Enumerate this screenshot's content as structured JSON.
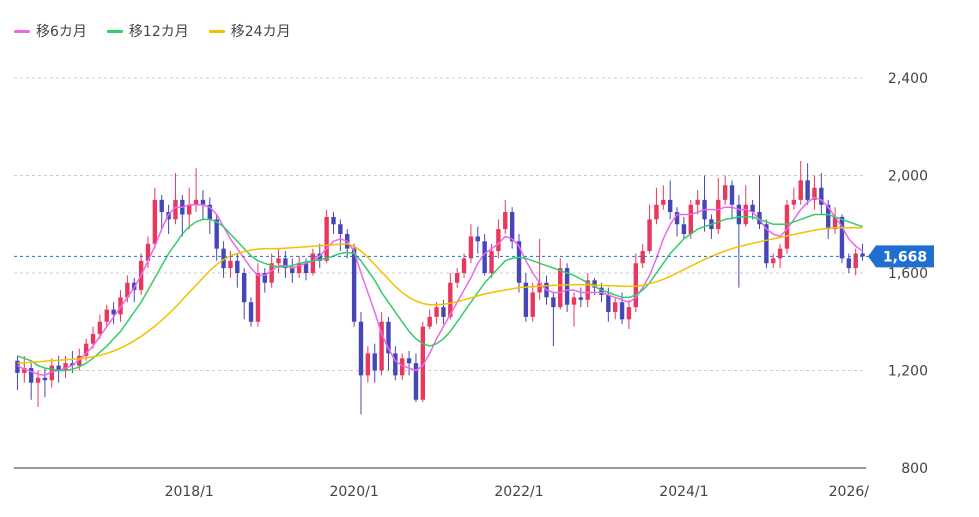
{
  "legend": [
    {
      "label": "移6カ月",
      "color": "#ee66ee"
    },
    {
      "label": "移12カ月",
      "color": "#33cc66"
    },
    {
      "label": "移24カ月",
      "color": "#f2c100"
    }
  ],
  "colors": {
    "up": "#e8385e",
    "down": "#4646b8",
    "grid": "#cccccc",
    "axis": "#333333",
    "price": "#1f6fd1"
  },
  "chart_data": {
    "type": "candlestick",
    "ylim": [
      800,
      2400
    ],
    "y_ticks": [
      "2,400",
      "2,000",
      "1,600",
      "1,200",
      "800"
    ],
    "y_tick_values": [
      2400,
      2000,
      1600,
      1200,
      800
    ],
    "x_ticks": [
      "2018/1",
      "2020/1",
      "2022/1",
      "2024/1",
      "2026/"
    ],
    "x_tick_months": [
      25,
      49,
      73,
      97,
      121
    ],
    "current_price": {
      "label": "1,668",
      "value": 1668
    },
    "candles": [
      [
        1240,
        1190,
        1260,
        1120
      ],
      [
        1190,
        1210,
        1260,
        1150
      ],
      [
        1210,
        1150,
        1230,
        1080
      ],
      [
        1150,
        1170,
        1200,
        1050
      ],
      [
        1170,
        1160,
        1210,
        1090
      ],
      [
        1160,
        1220,
        1250,
        1130
      ],
      [
        1220,
        1200,
        1260,
        1150
      ],
      [
        1200,
        1230,
        1260,
        1170
      ],
      [
        1230,
        1220,
        1280,
        1190
      ],
      [
        1220,
        1260,
        1290,
        1200
      ],
      [
        1260,
        1310,
        1330,
        1240
      ],
      [
        1310,
        1350,
        1380,
        1290
      ],
      [
        1350,
        1400,
        1430,
        1330
      ],
      [
        1400,
        1450,
        1470,
        1380
      ],
      [
        1450,
        1430,
        1480,
        1390
      ],
      [
        1430,
        1500,
        1530,
        1400
      ],
      [
        1500,
        1560,
        1590,
        1480
      ],
      [
        1560,
        1530,
        1580,
        1480
      ],
      [
        1530,
        1650,
        1680,
        1510
      ],
      [
        1650,
        1720,
        1750,
        1620
      ],
      [
        1720,
        1900,
        1950,
        1700
      ],
      [
        1900,
        1850,
        1920,
        1780
      ],
      [
        1850,
        1820,
        1880,
        1760
      ],
      [
        1820,
        1900,
        2010,
        1800
      ],
      [
        1900,
        1840,
        1920,
        1750
      ],
      [
        1840,
        1880,
        1950,
        1780
      ],
      [
        1880,
        1900,
        2030,
        1850
      ],
      [
        1900,
        1880,
        1940,
        1820
      ],
      [
        1880,
        1820,
        1910,
        1760
      ],
      [
        1820,
        1700,
        1840,
        1650
      ],
      [
        1700,
        1620,
        1730,
        1580
      ],
      [
        1620,
        1650,
        1690,
        1580
      ],
      [
        1650,
        1600,
        1680,
        1540
      ],
      [
        1600,
        1480,
        1620,
        1410
      ],
      [
        1480,
        1400,
        1500,
        1380
      ],
      [
        1400,
        1600,
        1640,
        1380
      ],
      [
        1600,
        1560,
        1620,
        1520
      ],
      [
        1560,
        1640,
        1680,
        1540
      ],
      [
        1640,
        1660,
        1700,
        1600
      ],
      [
        1660,
        1620,
        1690,
        1580
      ],
      [
        1620,
        1600,
        1660,
        1560
      ],
      [
        1600,
        1640,
        1670,
        1580
      ],
      [
        1640,
        1600,
        1660,
        1570
      ],
      [
        1600,
        1680,
        1700,
        1590
      ],
      [
        1680,
        1650,
        1720,
        1620
      ],
      [
        1650,
        1830,
        1860,
        1640
      ],
      [
        1830,
        1800,
        1850,
        1760
      ],
      [
        1800,
        1760,
        1820,
        1690
      ],
      [
        1760,
        1700,
        1780,
        1660
      ],
      [
        1700,
        1400,
        1720,
        1380
      ],
      [
        1400,
        1180,
        1440,
        1020
      ],
      [
        1180,
        1270,
        1300,
        1150
      ],
      [
        1270,
        1200,
        1310,
        1150
      ],
      [
        1200,
        1400,
        1440,
        1180
      ],
      [
        1400,
        1270,
        1420,
        1200
      ],
      [
        1270,
        1180,
        1300,
        1160
      ],
      [
        1180,
        1250,
        1270,
        1160
      ],
      [
        1250,
        1230,
        1280,
        1180
      ],
      [
        1230,
        1080,
        1270,
        1070
      ],
      [
        1080,
        1380,
        1400,
        1070
      ],
      [
        1380,
        1420,
        1450,
        1370
      ],
      [
        1420,
        1460,
        1480,
        1390
      ],
      [
        1460,
        1420,
        1490,
        1390
      ],
      [
        1420,
        1560,
        1600,
        1410
      ],
      [
        1560,
        1600,
        1620,
        1540
      ],
      [
        1600,
        1660,
        1680,
        1580
      ],
      [
        1660,
        1750,
        1800,
        1640
      ],
      [
        1750,
        1730,
        1790,
        1680
      ],
      [
        1730,
        1600,
        1760,
        1590
      ],
      [
        1600,
        1690,
        1720,
        1580
      ],
      [
        1690,
        1780,
        1820,
        1660
      ],
      [
        1780,
        1850,
        1900,
        1760
      ],
      [
        1850,
        1730,
        1870,
        1700
      ],
      [
        1730,
        1560,
        1760,
        1520
      ],
      [
        1560,
        1420,
        1600,
        1400
      ],
      [
        1420,
        1520,
        1560,
        1400
      ],
      [
        1520,
        1560,
        1740,
        1490
      ],
      [
        1560,
        1500,
        1590,
        1470
      ],
      [
        1500,
        1460,
        1520,
        1300
      ],
      [
        1460,
        1620,
        1660,
        1450
      ],
      [
        1620,
        1470,
        1640,
        1440
      ],
      [
        1470,
        1500,
        1520,
        1380
      ],
      [
        1500,
        1490,
        1540,
        1460
      ],
      [
        1490,
        1570,
        1600,
        1460
      ],
      [
        1570,
        1540,
        1580,
        1510
      ],
      [
        1540,
        1510,
        1560,
        1480
      ],
      [
        1510,
        1440,
        1540,
        1400
      ],
      [
        1440,
        1480,
        1500,
        1410
      ],
      [
        1480,
        1410,
        1520,
        1390
      ],
      [
        1410,
        1460,
        1490,
        1370
      ],
      [
        1460,
        1640,
        1680,
        1440
      ],
      [
        1640,
        1690,
        1720,
        1620
      ],
      [
        1690,
        1820,
        1880,
        1680
      ],
      [
        1820,
        1880,
        1950,
        1800
      ],
      [
        1880,
        1900,
        1960,
        1860
      ],
      [
        1900,
        1850,
        1980,
        1820
      ],
      [
        1850,
        1800,
        1870,
        1750
      ],
      [
        1800,
        1760,
        1830,
        1740
      ],
      [
        1760,
        1880,
        1900,
        1740
      ],
      [
        1880,
        1900,
        1940,
        1840
      ],
      [
        1900,
        1820,
        2000,
        1770
      ],
      [
        1820,
        1780,
        1840,
        1740
      ],
      [
        1780,
        1900,
        1990,
        1760
      ],
      [
        1900,
        1960,
        2000,
        1880
      ],
      [
        1960,
        1880,
        1980,
        1820
      ],
      [
        1880,
        1800,
        1920,
        1540
      ],
      [
        1800,
        1880,
        1960,
        1790
      ],
      [
        1880,
        1850,
        1900,
        1820
      ],
      [
        1850,
        1800,
        2000,
        1780
      ],
      [
        1800,
        1640,
        1820,
        1620
      ],
      [
        1640,
        1660,
        1680,
        1620
      ],
      [
        1660,
        1700,
        1720,
        1620
      ],
      [
        1700,
        1880,
        1900,
        1680
      ],
      [
        1880,
        1900,
        1950,
        1860
      ],
      [
        1900,
        1980,
        2060,
        1880
      ],
      [
        1980,
        1900,
        2050,
        1880
      ],
      [
        1900,
        1950,
        2000,
        1860
      ],
      [
        1950,
        1880,
        2010,
        1840
      ],
      [
        1880,
        1780,
        1900,
        1740
      ],
      [
        1780,
        1830,
        1870,
        1760
      ],
      [
        1830,
        1660,
        1840,
        1640
      ],
      [
        1660,
        1620,
        1680,
        1600
      ],
      [
        1620,
        1680,
        1700,
        1590
      ],
      [
        1680,
        1668,
        1720,
        1650
      ]
    ],
    "series": [
      {
        "name": "移6カ月",
        "values": [
          1220,
          1205,
          1195,
          1185,
          1180,
          1195,
          1200,
          1210,
          1220,
          1245,
          1270,
          1300,
          1340,
          1380,
          1420,
          1460,
          1500,
          1540,
          1590,
          1650,
          1710,
          1780,
          1840,
          1870,
          1870,
          1880,
          1880,
          1880,
          1870,
          1840,
          1790,
          1740,
          1700,
          1660,
          1620,
          1590,
          1590,
          1610,
          1630,
          1630,
          1620,
          1630,
          1640,
          1650,
          1670,
          1700,
          1730,
          1740,
          1730,
          1690,
          1600,
          1520,
          1440,
          1350,
          1290,
          1240,
          1220,
          1210,
          1200,
          1220,
          1270,
          1330,
          1380,
          1430,
          1480,
          1530,
          1580,
          1640,
          1680,
          1700,
          1720,
          1750,
          1740,
          1710,
          1650,
          1600,
          1560,
          1530,
          1520,
          1520,
          1530,
          1530,
          1520,
          1520,
          1520,
          1520,
          1510,
          1500,
          1490,
          1480,
          1500,
          1540,
          1590,
          1660,
          1740,
          1800,
          1840,
          1840,
          1840,
          1850,
          1860,
          1860,
          1860,
          1870,
          1870,
          1860,
          1860,
          1850,
          1820,
          1780,
          1760,
          1750,
          1780,
          1820,
          1860,
          1890,
          1910,
          1900,
          1870,
          1830,
          1790,
          1740,
          1710,
          1690
        ]
      },
      {
        "name": "移12カ月",
        "values": [
          1260,
          1250,
          1240,
          1220,
          1210,
          1205,
          1200,
          1200,
          1205,
          1215,
          1230,
          1250,
          1275,
          1300,
          1330,
          1360,
          1400,
          1440,
          1480,
          1530,
          1580,
          1630,
          1680,
          1720,
          1760,
          1790,
          1810,
          1820,
          1820,
          1810,
          1790,
          1760,
          1730,
          1700,
          1670,
          1650,
          1640,
          1630,
          1625,
          1625,
          1630,
          1640,
          1645,
          1650,
          1655,
          1660,
          1670,
          1680,
          1685,
          1680,
          1650,
          1610,
          1570,
          1520,
          1480,
          1440,
          1400,
          1360,
          1330,
          1310,
          1300,
          1310,
          1330,
          1360,
          1400,
          1440,
          1480,
          1520,
          1560,
          1590,
          1620,
          1650,
          1660,
          1665,
          1660,
          1650,
          1640,
          1630,
          1620,
          1610,
          1600,
          1590,
          1575,
          1560,
          1545,
          1530,
          1520,
          1510,
          1500,
          1500,
          1510,
          1530,
          1560,
          1600,
          1640,
          1680,
          1710,
          1740,
          1760,
          1780,
          1790,
          1800,
          1810,
          1820,
          1825,
          1830,
          1830,
          1830,
          1820,
          1810,
          1800,
          1800,
          1800,
          1810,
          1820,
          1830,
          1840,
          1840,
          1840,
          1830,
          1820,
          1810,
          1800,
          1790
        ]
      },
      {
        "name": "移24カ月",
        "values": [
          1230,
          1232,
          1234,
          1236,
          1238,
          1240,
          1242,
          1244,
          1246,
          1248,
          1252,
          1256,
          1262,
          1270,
          1280,
          1292,
          1306,
          1322,
          1340,
          1360,
          1382,
          1406,
          1432,
          1460,
          1490,
          1520,
          1550,
          1580,
          1610,
          1635,
          1655,
          1670,
          1680,
          1688,
          1694,
          1698,
          1700,
          1700,
          1700,
          1702,
          1704,
          1706,
          1708,
          1710,
          1712,
          1714,
          1716,
          1718,
          1720,
          1710,
          1690,
          1665,
          1635,
          1605,
          1575,
          1545,
          1520,
          1500,
          1485,
          1475,
          1470,
          1470,
          1472,
          1476,
          1482,
          1490,
          1498,
          1506,
          1514,
          1520,
          1525,
          1530,
          1535,
          1540,
          1542,
          1544,
          1546,
          1548,
          1549,
          1550,
          1551,
          1552,
          1552,
          1551,
          1550,
          1549,
          1548,
          1547,
          1546,
          1545,
          1546,
          1550,
          1556,
          1564,
          1574,
          1586,
          1600,
          1614,
          1628,
          1642,
          1656,
          1668,
          1680,
          1690,
          1700,
          1708,
          1715,
          1722,
          1728,
          1734,
          1740,
          1746,
          1752,
          1758,
          1764,
          1770,
          1776,
          1780,
          1784,
          1786,
          1786,
          1786,
          1786,
          1786
        ]
      }
    ]
  }
}
